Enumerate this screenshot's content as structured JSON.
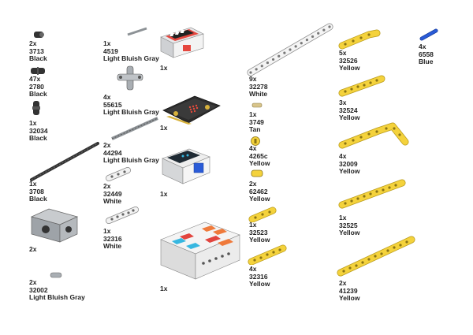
{
  "parts": [
    {
      "id": "3713",
      "qty": "2x",
      "num": "3713",
      "color": "Black"
    },
    {
      "id": "2780",
      "qty": "47x",
      "num": "2780",
      "color": "Black"
    },
    {
      "id": "32034",
      "qty": "1x",
      "num": "32034",
      "color": "Black"
    },
    {
      "id": "3708",
      "qty": "1x",
      "num": "3708",
      "color": "Black"
    },
    {
      "id": "motor",
      "qty": "2x"
    },
    {
      "id": "32002",
      "qty": "2x",
      "num": "32002",
      "color": "Light Bluish Gray"
    },
    {
      "id": "4519",
      "qty": "1x",
      "num": "4519",
      "color": "Light Bluish Gray"
    },
    {
      "id": "55615",
      "qty": "4x",
      "num": "55615",
      "color": "Light Bluish Gray"
    },
    {
      "id": "44294",
      "qty": "2x",
      "num": "44294",
      "color": "Light Bluish Gray"
    },
    {
      "id": "32449",
      "qty": "2x",
      "num": "32449",
      "color": "White"
    },
    {
      "id": "32316w",
      "qty": "1x",
      "num": "32316",
      "color": "White"
    },
    {
      "id": "display",
      "qty": "1x"
    },
    {
      "id": "microbit",
      "qty": "1x"
    },
    {
      "id": "screen",
      "qty": "1x"
    },
    {
      "id": "hub",
      "qty": "1x"
    },
    {
      "id": "32278",
      "qty": "9x",
      "num": "32278",
      "color": "White"
    },
    {
      "id": "3749",
      "qty": "1x",
      "num": "3749",
      "color": "Tan"
    },
    {
      "id": "4265c",
      "qty": "4x",
      "num": "4265c",
      "color": "Yellow"
    },
    {
      "id": "62462",
      "qty": "2x",
      "num": "62462",
      "color": "Yellow"
    },
    {
      "id": "32523",
      "qty": "1x",
      "num": "32523",
      "color": "Yellow"
    },
    {
      "id": "32316y",
      "qty": "4x",
      "num": "32316",
      "color": "Yellow"
    },
    {
      "id": "32526",
      "qty": "5x",
      "num": "32526",
      "color": "Yellow"
    },
    {
      "id": "32524",
      "qty": "3x",
      "num": "32524",
      "color": "Yellow"
    },
    {
      "id": "32009",
      "qty": "4x",
      "num": "32009",
      "color": "Yellow"
    },
    {
      "id": "32525",
      "qty": "1x",
      "num": "32525",
      "color": "Yellow"
    },
    {
      "id": "41239",
      "qty": "2x",
      "num": "41239",
      "color": "Yellow"
    },
    {
      "id": "6558",
      "qty": "4x",
      "num": "6558",
      "color": "Blue"
    }
  ],
  "colors": {
    "yellow": "#f4d23c",
    "yellow_dark": "#b89a1a",
    "black": "#333333",
    "gray": "#a9aeb3",
    "white": "#f2f2f2",
    "blue": "#2a5bd7",
    "tan": "#d8c48a",
    "orange": "#ef7a3b",
    "red": "#e2453f",
    "cyan": "#37b7e0"
  }
}
